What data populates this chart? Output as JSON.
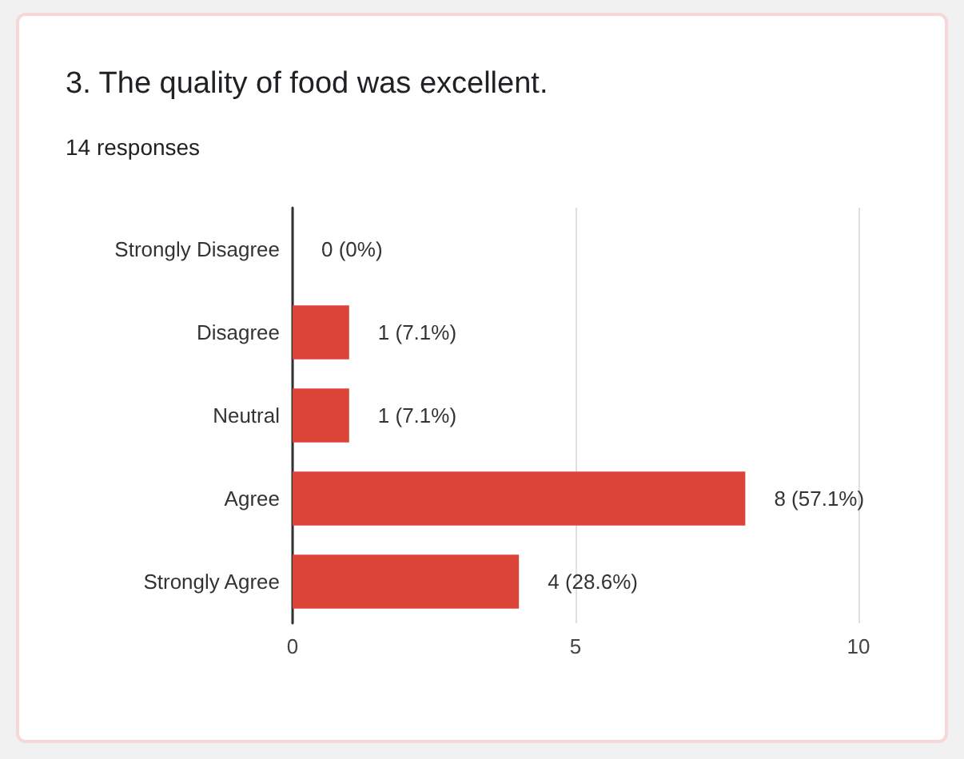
{
  "chart_data": {
    "type": "bar",
    "orientation": "horizontal",
    "title": "3. The quality of food was excellent.",
    "subtitle": "14 responses",
    "categories": [
      "Strongly Disagree",
      "Disagree",
      "Neutral",
      "Agree",
      "Strongly Agree"
    ],
    "values": [
      0,
      1,
      1,
      8,
      4
    ],
    "color": "#dc4437",
    "value_labels": [
      "0 (0%)",
      "1 (7.1%)",
      "1 (7.1%)",
      "8 (57.1%)",
      "4 (28.6%)"
    ],
    "xlim": [
      0,
      10
    ],
    "xticks": [
      0,
      5,
      10
    ],
    "grid": "x"
  }
}
